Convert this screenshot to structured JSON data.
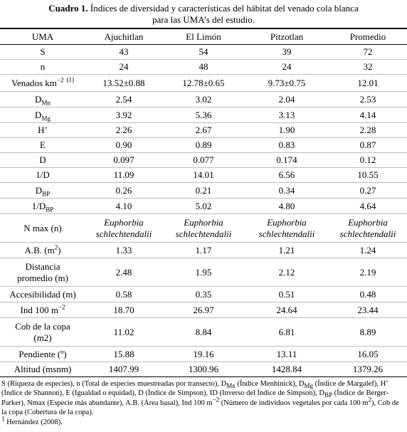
{
  "caption": {
    "number": "Cuadro 1.",
    "line1": "Índices de diversidad y características del hábitat del venado cola blanca",
    "line2": "para las UMA’s del estudio."
  },
  "table": {
    "headers": [
      "UMA",
      "Ajuchitlan",
      "El Limón",
      "Pitzotlan",
      "Promedio"
    ],
    "rows": [
      {
        "label": "S",
        "values": [
          "43",
          "54",
          "39",
          "72"
        ]
      },
      {
        "label": "n",
        "values": [
          "24",
          "48",
          "24",
          "32"
        ]
      },
      {
        "label": "Venados km",
        "label_sup": "−2",
        "label_ref": "(1)",
        "values": [
          "13.52±0.88",
          "12.78±0.65",
          "9.73±0.75",
          "12.01"
        ]
      },
      {
        "label": "D",
        "label_sub": "Mn",
        "values": [
          "2.54",
          "3.02",
          "2.04",
          "2.53"
        ]
      },
      {
        "label": "D",
        "label_sub": "Mg",
        "values": [
          "3.92",
          "5.36",
          "3.13",
          "4.14"
        ]
      },
      {
        "label": "H’",
        "values": [
          "2.26",
          "2.67",
          "1.90",
          "2.28"
        ]
      },
      {
        "label": "E",
        "values": [
          "0.90",
          "0.89",
          "0.83",
          "0.87"
        ]
      },
      {
        "label": "D",
        "values": [
          "0.097",
          "0.077",
          "0.174",
          "0.12"
        ]
      },
      {
        "label": "1/D",
        "values": [
          "11.09",
          "14.01",
          "6.56",
          "10.55"
        ]
      },
      {
        "label": "D",
        "label_sub": "BP",
        "values": [
          "0.26",
          "0.21",
          "0.34",
          "0.27"
        ]
      },
      {
        "label": "1/D",
        "label_sub": "BP",
        "values": [
          "4.10",
          "5.02",
          "4.80",
          "4.64"
        ]
      },
      {
        "label": "N max (n)",
        "values_it": [
          [
            "Euphorbia",
            "schlechtendalii"
          ],
          [
            "Euphorbia",
            "schlechtendalii"
          ],
          [
            "Euphorbia",
            "schlechtendalii"
          ],
          [
            "Euphorbia",
            "schlechtendalii"
          ]
        ]
      },
      {
        "label": "A.B. (m",
        "label_sup": "2",
        "label_tail": ")",
        "values": [
          "1.33",
          "1.17",
          "1.21",
          "1.24"
        ]
      },
      {
        "label_lines": [
          "Distancia",
          "promedio (m)"
        ],
        "values": [
          "2.48",
          "1.95",
          "2.12",
          "2.19"
        ]
      },
      {
        "label": "Accesibilidad (m)",
        "values": [
          "0.58",
          "0.35",
          "0.51",
          "0.48"
        ]
      },
      {
        "label": "Ind 100 m",
        "label_sup": "−2",
        "values": [
          "18.70",
          "26.97",
          "24.64",
          "23.44"
        ]
      },
      {
        "label_lines": [
          "Cob de la copa",
          "(m2)"
        ],
        "values": [
          "11.02",
          "8.84",
          "6.81",
          "8.89"
        ]
      },
      {
        "label": "Pendiente (º)",
        "values": [
          "15.88",
          "19.16",
          "13.11",
          "16.05"
        ]
      },
      {
        "label": "Altitud (msnm)",
        "values": [
          "1407.99",
          "1300.96",
          "1428.84",
          "1379.26"
        ]
      }
    ]
  },
  "footnotes": {
    "text_before": "S (Riqueza de especies), n (Total de especies muestreadas por transecto), D",
    "sub_mn": "Mn",
    "text_mn": " (Índice Menhinick), D",
    "sub_mg": "Mg",
    "text_mg": " (Índice de Margalef),  H’ (Índice de Shannon), E (Igualdad o equidad), D (Índice de Simpson), ID  (Inverso del Índice de Simpson), D",
    "sub_bp": "BP",
    "text_bp": " (Índice de Berger-Parker), Nmax (Especie más abundante),  A.B. (Área basal), Ind 100 m",
    "sup_ind": "−2",
    "text_end": " (Número de individuos vegetales por cada 100 m",
    "sup_m2": "2",
    "text_final": "), Cob de la copa (Cobertura de la copa).",
    "ref_number": "1",
    "ref_text": "Hernández (2008)."
  }
}
